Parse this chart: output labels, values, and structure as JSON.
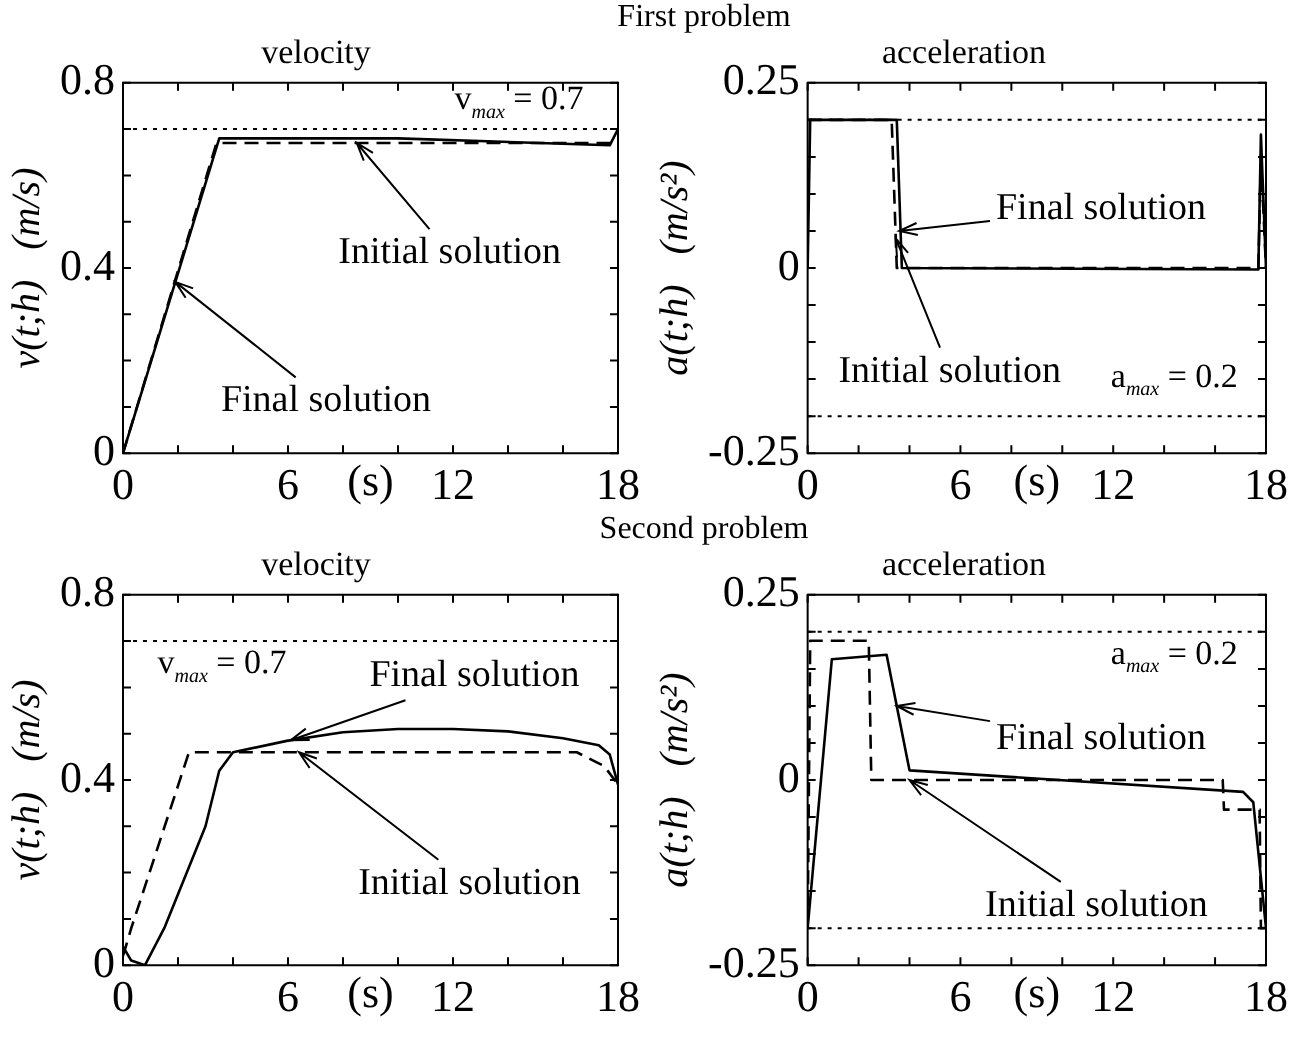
{
  "chart_data": [
    {
      "type": "line",
      "title": "velocity",
      "xlabel": "(s)",
      "ylabel": "v(t;h)   (m/s)",
      "xlim": [
        0,
        18
      ],
      "xticks": [
        0,
        {
          "value": 2,
          "label": null
        },
        {
          "value": 4,
          "label": null
        },
        6,
        {
          "value": 8,
          "label": null
        },
        {
          "value": 10,
          "label": null
        },
        12,
        {
          "value": 14,
          "label": null
        },
        {
          "value": 16,
          "label": null
        },
        18
      ],
      "ylim": [
        0,
        0.8
      ],
      "yticks": [
        0,
        {
          "value": 0.1,
          "label": null
        },
        {
          "value": 0.2,
          "label": null
        },
        {
          "value": 0.3,
          "label": null
        },
        0.4,
        {
          "value": 0.5,
          "label": null
        },
        {
          "value": 0.6,
          "label": null
        },
        {
          "value": 0.7,
          "label": null
        },
        0.8
      ],
      "marker": "none",
      "legend": false,
      "grid": false,
      "series": [
        {
          "color": "#000000",
          "line_style": "solid",
          "x": [
            0,
            3.5,
            10,
            17.7,
            18
          ],
          "values": [
            0,
            0.68,
            0.68,
            0.665,
            0.7
          ]
        },
        {
          "color": "#000000",
          "line_style": "dashed",
          "x": [
            0,
            3.4,
            18
          ],
          "values": [
            0,
            0.67,
            0.67
          ]
        }
      ],
      "ref_lines": [
        {
          "axis": "y",
          "value": 0.7,
          "label": "v$_{max}$ = 0.7",
          "line_style": "dotted",
          "color": "#000000"
        }
      ],
      "subtitle": "First problem",
      "annotations": [
        {
          "text": "Initial solution",
          "x": 8.5,
          "y": 0.67
        },
        {
          "text": "Final solution",
          "x": 1.9,
          "y": 0.37
        }
      ]
    },
    {
      "type": "line",
      "title": "acceleration",
      "xlabel": "(s)",
      "ylabel": "a(t;h)   (m/s²)",
      "xlim": [
        0,
        18
      ],
      "xticks": [
        0,
        {
          "value": 2,
          "label": null
        },
        {
          "value": 4,
          "label": null
        },
        6,
        {
          "value": 8,
          "label": null
        },
        {
          "value": 10,
          "label": null
        },
        12,
        {
          "value": 14,
          "label": null
        },
        {
          "value": 16,
          "label": null
        },
        18
      ],
      "ylim": [
        -0.25,
        0.25
      ],
      "yticks": [
        -0.25,
        {
          "value": -0.2,
          "label": null
        },
        {
          "value": -0.15,
          "label": null
        },
        {
          "value": -0.1,
          "label": null
        },
        {
          "value": -0.05,
          "label": null
        },
        0,
        {
          "value": 0.05,
          "label": null
        },
        {
          "value": 0.1,
          "label": null
        },
        {
          "value": 0.15,
          "label": null
        },
        {
          "value": 0.2,
          "label": null
        },
        0.25
      ],
      "marker": "none",
      "legend": false,
      "grid": false,
      "series": [
        {
          "color": "#000000",
          "line_style": "solid",
          "x": [
            0,
            0.1,
            3.5,
            3.7,
            17.7,
            17.8,
            18
          ],
          "values": [
            0,
            0.2,
            0.2,
            0,
            -0.002,
            0.18,
            0
          ]
        },
        {
          "color": "#000000",
          "line_style": "dashed",
          "x": [
            0,
            0.1,
            3.3,
            3.5,
            17.7,
            17.8,
            18
          ],
          "values": [
            0.2,
            0.2,
            0.2,
            0,
            0,
            0.15,
            0
          ]
        }
      ],
      "ref_lines": [
        {
          "axis": "y",
          "value": 0.2,
          "line_style": "dotted",
          "color": "#000000"
        },
        {
          "axis": "y",
          "value": -0.2,
          "line_style": "dotted",
          "color": "#000000"
        }
      ],
      "annotations": [
        {
          "text": "Final solution",
          "x": 3.6,
          "y": 0.05
        },
        {
          "text": "Initial solution",
          "x": 3.46,
          "y": 0.04
        },
        "a$_{max}$ = 0.2"
      ]
    },
    {
      "type": "line",
      "title": "velocity",
      "xlabel": "(s)",
      "ylabel": "v(t;h)   (m/s)",
      "xlim": [
        0,
        18
      ],
      "xticks": [
        0,
        {
          "value": 2,
          "label": null
        },
        {
          "value": 4,
          "label": null
        },
        6,
        {
          "value": 8,
          "label": null
        },
        {
          "value": 10,
          "label": null
        },
        12,
        {
          "value": 14,
          "label": null
        },
        {
          "value": 16,
          "label": null
        },
        18
      ],
      "ylim": [
        0,
        0.8
      ],
      "yticks": [
        0,
        {
          "value": 0.1,
          "label": null
        },
        {
          "value": 0.2,
          "label": null
        },
        {
          "value": 0.3,
          "label": null
        },
        0.4,
        {
          "value": 0.5,
          "label": null
        },
        {
          "value": 0.6,
          "label": null
        },
        {
          "value": 0.7,
          "label": null
        },
        0.8
      ],
      "marker": "none",
      "legend": false,
      "grid": false,
      "series": [
        {
          "color": "#000000",
          "line_style": "solid",
          "x": [
            0,
            0.3,
            0.8,
            1.5,
            3,
            3.5,
            4,
            6,
            8,
            10,
            12,
            14,
            16,
            17.3,
            17.7,
            18
          ],
          "values": [
            0.04,
            0.01,
            0,
            0.08,
            0.3,
            0.42,
            0.46,
            0.485,
            0.503,
            0.51,
            0.51,
            0.505,
            0.49,
            0.475,
            0.455,
            0.39
          ]
        },
        {
          "color": "#000000",
          "line_style": "dashed",
          "x": [
            0,
            0.3,
            2.4,
            16.5,
            17.5,
            18
          ],
          "values": [
            0.02,
            0.08,
            0.46,
            0.46,
            0.43,
            0.39
          ]
        }
      ],
      "ref_lines": [
        {
          "axis": "y",
          "value": 0.7,
          "label": "v$_{max}$ = 0.7",
          "line_style": "dotted",
          "color": "#000000"
        }
      ],
      "subtitle": "Second problem",
      "annotations": [
        {
          "text": "Final solution",
          "x": 6.1,
          "y": 0.486
        },
        {
          "text": "Initial solution",
          "x": 6.4,
          "y": 0.46
        }
      ]
    },
    {
      "type": "line",
      "title": "acceleration",
      "xlabel": "(s)",
      "ylabel": "a(t;h)   (m/s²)",
      "xlim": [
        0,
        18
      ],
      "xticks": [
        0,
        {
          "value": 2,
          "label": null
        },
        {
          "value": 4,
          "label": null
        },
        6,
        {
          "value": 8,
          "label": null
        },
        {
          "value": 10,
          "label": null
        },
        12,
        {
          "value": 14,
          "label": null
        },
        {
          "value": 16,
          "label": null
        },
        18
      ],
      "ylim": [
        -0.25,
        0.25
      ],
      "yticks": [
        -0.25,
        {
          "value": -0.2,
          "label": null
        },
        {
          "value": -0.15,
          "label": null
        },
        {
          "value": -0.1,
          "label": null
        },
        {
          "value": -0.05,
          "label": null
        },
        0,
        {
          "value": 0.05,
          "label": null
        },
        {
          "value": 0.1,
          "label": null
        },
        {
          "value": 0.15,
          "label": null
        },
        {
          "value": 0.2,
          "label": null
        },
        0.25
      ],
      "marker": "none",
      "legend": false,
      "grid": false,
      "series": [
        {
          "color": "#000000",
          "line_style": "solid",
          "x": [
            0,
            0.95,
            3.1,
            4,
            17.1,
            17.5,
            18
          ],
          "values": [
            -0.2,
            0.163,
            0.169,
            0.013,
            -0.016,
            -0.03,
            -0.2
          ]
        },
        {
          "color": "#000000",
          "line_style": "dashed",
          "x": [
            0,
            0.1,
            2.4,
            2.5,
            16.3,
            16.35,
            17.75,
            17.8,
            18
          ],
          "values": [
            -0.2,
            0.188,
            0.188,
            0,
            0,
            -0.04,
            -0.04,
            -0.2,
            -0.2
          ]
        }
      ],
      "ref_lines": [
        {
          "axis": "y",
          "value": 0.2,
          "label": "a$_{max}$ = 0.2",
          "line_style": "dotted",
          "color": "#000000"
        },
        {
          "axis": "y",
          "value": -0.2,
          "line_style": "dotted",
          "color": "#000000"
        }
      ],
      "annotations": [
        {
          "text": "Final solution",
          "x": 3.5,
          "y": 0.1
        },
        {
          "text": "Initial solution",
          "x": 4,
          "y": 0
        }
      ]
    }
  ]
}
